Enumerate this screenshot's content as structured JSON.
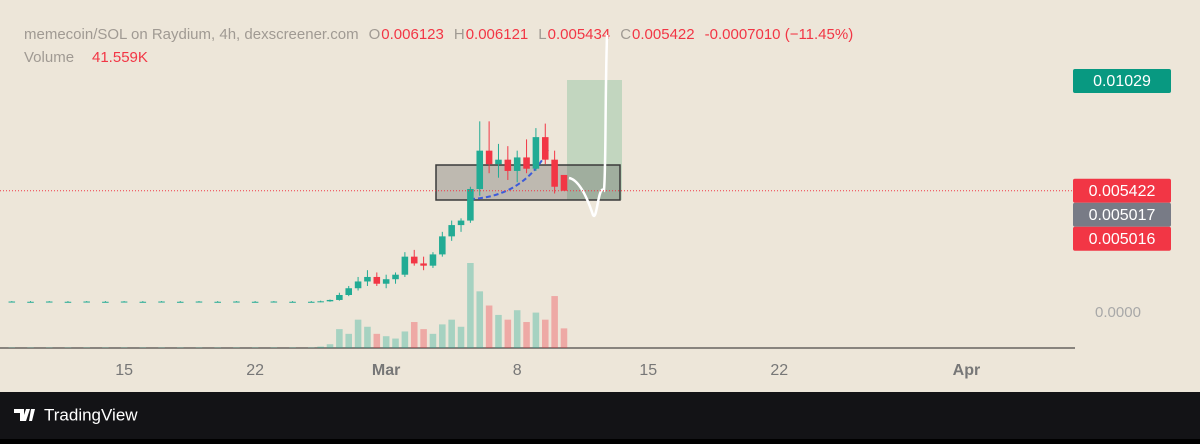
{
  "chart_data": {
    "type": "candlestick",
    "title": "memecoin/SOL on Raydium, 4h, dexscreener.com",
    "legend": {
      "o_label": "O",
      "open": "0.006123",
      "h_label": "H",
      "high": "0.006121",
      "l_label": "L",
      "low": "0.005434",
      "c_label": "C",
      "close": "0.005422",
      "change": "-0.0007010 (−11.45%)",
      "volume_label": "Volume",
      "volume": "41.559K"
    },
    "x": [
      9,
      10,
      11,
      12,
      13,
      14,
      15,
      16,
      17,
      18,
      19,
      20,
      21,
      22,
      23,
      24,
      25,
      25.5,
      26,
      26.5,
      27,
      27.5,
      28,
      28.5,
      29,
      29.5,
      30,
      30.5,
      31,
      31.5,
      32,
      32.5,
      33,
      33.5,
      34,
      34.5,
      35,
      35.5,
      36,
      36.5,
      37,
      37.5,
      38,
      38.5
    ],
    "open": [
      0.0005,
      0.0005,
      0.0005,
      0.0005,
      0.0005,
      0.0005,
      0.0005,
      0.0005,
      0.0005,
      0.0005,
      0.0005,
      0.0005,
      0.0005,
      0.0005,
      0.0005,
      0.0005,
      0.0005,
      0.0005,
      0.00052,
      0.00058,
      0.0008,
      0.0011,
      0.0014,
      0.0016,
      0.0013,
      0.0015,
      0.0017,
      0.0025,
      0.0022,
      0.0021,
      0.0026,
      0.0034,
      0.0039,
      0.0041,
      0.0055,
      0.0072,
      0.0066,
      0.0068,
      0.0063,
      0.0069,
      0.0064,
      0.0078,
      0.0068,
      0.006123
    ],
    "high": [
      0.00053,
      0.00053,
      0.00053,
      0.00053,
      0.00053,
      0.00053,
      0.00053,
      0.00053,
      0.00053,
      0.00053,
      0.00053,
      0.00053,
      0.00053,
      0.00053,
      0.00053,
      0.00053,
      0.00053,
      0.00055,
      0.0006,
      0.0009,
      0.0012,
      0.0016,
      0.0019,
      0.0018,
      0.0017,
      0.0018,
      0.0027,
      0.0028,
      0.0025,
      0.0027,
      0.0036,
      0.0041,
      0.0042,
      0.0056,
      0.0085,
      0.0085,
      0.0075,
      0.0074,
      0.0072,
      0.0077,
      0.0082,
      0.0084,
      0.0072,
      0.006121
    ],
    "low": [
      0.00047,
      0.00047,
      0.00047,
      0.00047,
      0.00047,
      0.00047,
      0.00047,
      0.00047,
      0.00047,
      0.00047,
      0.00047,
      0.00047,
      0.00047,
      0.00047,
      0.00047,
      0.00047,
      0.00047,
      0.00048,
      0.0005,
      0.00055,
      0.00075,
      0.001,
      0.0012,
      0.0012,
      0.0011,
      0.0013,
      0.0016,
      0.0021,
      0.0019,
      0.002,
      0.0025,
      0.0032,
      0.0036,
      0.004,
      0.0052,
      0.0062,
      0.006,
      0.0059,
      0.0058,
      0.0062,
      0.0063,
      0.0066,
      0.0053,
      0.005434
    ],
    "close": [
      0.00051,
      0.0005,
      0.00051,
      0.0005,
      0.00051,
      0.0005,
      0.00051,
      0.0005,
      0.00051,
      0.0005,
      0.00051,
      0.0005,
      0.00051,
      0.0005,
      0.00051,
      0.0005,
      0.0005,
      0.00052,
      0.00058,
      0.0008,
      0.0011,
      0.0014,
      0.0016,
      0.0013,
      0.0015,
      0.0017,
      0.0025,
      0.0022,
      0.0021,
      0.0026,
      0.0034,
      0.0039,
      0.0041,
      0.0055,
      0.0072,
      0.0066,
      0.0068,
      0.0063,
      0.0069,
      0.0064,
      0.0078,
      0.0068,
      0.0056,
      0.005422
    ],
    "volume": [
      1,
      1,
      1,
      1,
      1,
      1,
      1,
      1,
      1,
      1,
      1,
      1,
      1,
      1,
      1,
      1,
      1,
      3,
      8,
      40,
      30,
      60,
      45,
      30,
      25,
      20,
      35,
      55,
      40,
      30,
      50,
      60,
      45,
      180,
      120,
      90,
      70,
      60,
      80,
      55,
      75,
      60,
      110,
      41.559
    ],
    "up_color": "#22ab94",
    "down_color": "#f23645",
    "xlim": [
      8.37,
      65.8
    ],
    "xticks": [
      15,
      22,
      {
        "value": 29,
        "label": "Mar"
      },
      {
        "value": 36,
        "label": "8"
      },
      {
        "value": 43,
        "label": "15"
      },
      {
        "value": 50,
        "label": "22"
      },
      {
        "value": 60,
        "label": "Apr"
      }
    ],
    "ylim": [
      -0.00155,
      0.01388
    ],
    "yticks": [
      {
        "value": 0,
        "label": "0.0000"
      }
    ],
    "price_labels": [
      {
        "value": 0.01029,
        "color": "#089981"
      },
      {
        "value": 0.005422,
        "color": "#f23645"
      },
      {
        "value": 0.005017,
        "color": "#787b86"
      },
      {
        "value": 0.005016,
        "color": "#f23645"
      }
    ],
    "last_price_line": 0.005422,
    "brand": "TradingView"
  }
}
